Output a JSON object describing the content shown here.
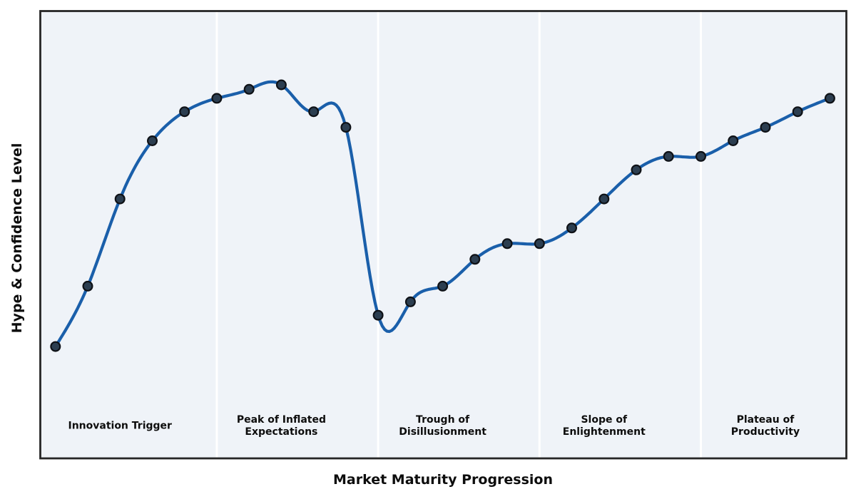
{
  "chart_data": {
    "type": "line",
    "title": "",
    "xlabel": "Market Maturity Progression",
    "ylabel": "Hype & Confidence Level",
    "x": [
      0,
      1,
      2,
      3,
      4,
      5,
      6,
      7,
      8,
      9,
      10,
      11,
      12,
      13,
      14,
      15,
      16,
      17,
      18,
      19,
      20,
      21,
      22,
      23,
      24
    ],
    "series": [
      {
        "name": "Hype & Confidence",
        "values": [
          25,
          38.5,
          58,
          71,
          77.5,
          80.5,
          82.5,
          83.5,
          77.5,
          74,
          32,
          35,
          38.5,
          44.5,
          48,
          48,
          51.5,
          58,
          64.5,
          67.5,
          67.5,
          71,
          74,
          77.5,
          80.5
        ]
      }
    ],
    "xlim": [
      -0.47,
      24.51
    ],
    "ylim": [
      0,
      100
    ],
    "grid": false,
    "legend_position": "none",
    "axis_ticks_visible": false,
    "smoothing": "cubic-spline",
    "marker_style": "filled-circle",
    "phase_boundaries_x": [
      5,
      10,
      15,
      20
    ],
    "phases": [
      {
        "label": "Innovation Trigger",
        "label_x": 2
      },
      {
        "label": "Peak of Inflated\nExpectations",
        "label_x": 7
      },
      {
        "label": "Trough of\nDisillusionment",
        "label_x": 12
      },
      {
        "label": "Slope of\nEnlightenment",
        "label_x": 17
      },
      {
        "label": "Plateau of\nProductivity",
        "label_x": 22
      }
    ],
    "phase_label_y": 7.2,
    "colors": {
      "figure_bg": "#ffffff",
      "plot_bg": "#eff3f8",
      "line": "#1a5faa",
      "marker_fill": "#2c3e50",
      "marker_edge": "#0e1116",
      "phase_divider": "#ffffff",
      "spine": "#262626",
      "text": "#0d0d0d"
    }
  }
}
